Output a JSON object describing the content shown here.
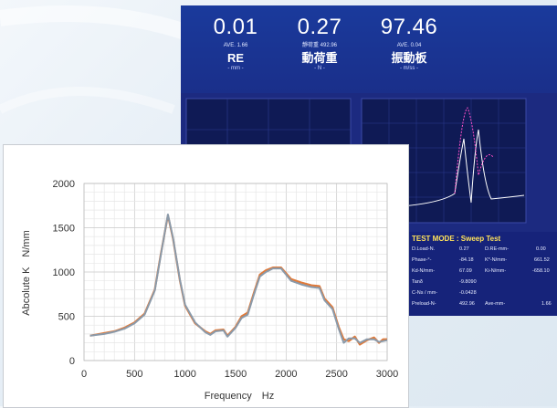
{
  "instrument": {
    "readouts": [
      {
        "value": "0.01",
        "sub": "AVE. 1.66",
        "label": "RE",
        "unit": "- mm -"
      },
      {
        "value": "0.27",
        "sub": "靜荷重 492.96",
        "label": "動荷重",
        "unit": "- N -"
      },
      {
        "value": "97.46",
        "sub": "AVE. 0.04",
        "label": "振動板",
        "unit": "- m/ss -"
      }
    ],
    "test_mode_title": "TEST MODE : Sweep Test",
    "params": [
      {
        "label": "D.Load-N.",
        "value": "0.27",
        "label2": "D.RE-mm-",
        "value2": "0.00"
      },
      {
        "label": "Phase-°-",
        "value": "-84.18",
        "label2": "K*-N/mm-",
        "value2": "661.52"
      },
      {
        "label": "Kd-N/mm-",
        "value": "67.09",
        "label2": "Ki-N/mm-",
        "value2": "-658.10"
      },
      {
        "label": "Tanδ",
        "value": "-9.8090",
        "label2": "",
        "value2": ""
      },
      {
        "label": "C-Ns / mm-",
        "value": "-0.0428",
        "label2": "",
        "value2": ""
      },
      {
        "label": "Preload-N-",
        "value": "492.96",
        "label2": "Ave-mm-",
        "value2": "1.66"
      }
    ],
    "colors": {
      "screen_bg": "#14216f",
      "title_yellow": "#ffe25a",
      "trace": "#ff4fc8"
    }
  },
  "chart_data": {
    "type": "line",
    "xlabel": "Frequency　Hz",
    "ylabel": "Abcolute K　N/mm",
    "xlim": [
      0,
      3000
    ],
    "ylim": [
      0,
      2000
    ],
    "x_ticks": [
      0,
      500,
      1000,
      1500,
      2000,
      2500,
      3000
    ],
    "y_ticks": [
      0,
      500,
      1000,
      1500,
      2000
    ],
    "grid": true,
    "series": [
      {
        "color": "#e07a3a",
        "points": [
          [
            60,
            280
          ],
          [
            200,
            310
          ],
          [
            300,
            330
          ],
          [
            400,
            370
          ],
          [
            500,
            430
          ],
          [
            600,
            530
          ],
          [
            700,
            800
          ],
          [
            760,
            1200
          ],
          [
            830,
            1640
          ],
          [
            880,
            1380
          ],
          [
            950,
            900
          ],
          [
            1000,
            620
          ],
          [
            1100,
            420
          ],
          [
            1200,
            330
          ],
          [
            1250,
            300
          ],
          [
            1300,
            340
          ],
          [
            1380,
            350
          ],
          [
            1420,
            280
          ],
          [
            1500,
            380
          ],
          [
            1560,
            500
          ],
          [
            1620,
            540
          ],
          [
            1680,
            760
          ],
          [
            1740,
            970
          ],
          [
            1800,
            1020
          ],
          [
            1870,
            1050
          ],
          [
            1950,
            1050
          ],
          [
            2050,
            920
          ],
          [
            2150,
            880
          ],
          [
            2250,
            850
          ],
          [
            2330,
            840
          ],
          [
            2380,
            700
          ],
          [
            2460,
            600
          ],
          [
            2520,
            380
          ],
          [
            2570,
            240
          ],
          [
            2620,
            220
          ],
          [
            2680,
            270
          ],
          [
            2730,
            180
          ],
          [
            2800,
            230
          ],
          [
            2870,
            260
          ],
          [
            2920,
            200
          ],
          [
            2960,
            240
          ],
          [
            3000,
            240
          ]
        ]
      },
      {
        "color": "#8a9aaa",
        "points": [
          [
            60,
            280
          ],
          [
            200,
            300
          ],
          [
            300,
            325
          ],
          [
            400,
            360
          ],
          [
            500,
            420
          ],
          [
            600,
            520
          ],
          [
            700,
            790
          ],
          [
            760,
            1190
          ],
          [
            830,
            1650
          ],
          [
            880,
            1390
          ],
          [
            950,
            910
          ],
          [
            1000,
            630
          ],
          [
            1100,
            430
          ],
          [
            1200,
            320
          ],
          [
            1250,
            290
          ],
          [
            1300,
            330
          ],
          [
            1380,
            340
          ],
          [
            1420,
            270
          ],
          [
            1500,
            370
          ],
          [
            1560,
            480
          ],
          [
            1620,
            520
          ],
          [
            1680,
            740
          ],
          [
            1740,
            950
          ],
          [
            1800,
            1000
          ],
          [
            1870,
            1040
          ],
          [
            1950,
            1040
          ],
          [
            2050,
            900
          ],
          [
            2150,
            860
          ],
          [
            2250,
            830
          ],
          [
            2330,
            820
          ],
          [
            2380,
            680
          ],
          [
            2460,
            580
          ],
          [
            2520,
            360
          ],
          [
            2570,
            200
          ],
          [
            2620,
            250
          ],
          [
            2680,
            250
          ],
          [
            2730,
            200
          ],
          [
            2800,
            240
          ],
          [
            2870,
            240
          ],
          [
            2920,
            210
          ],
          [
            2960,
            220
          ],
          [
            3000,
            230
          ]
        ]
      }
    ]
  }
}
